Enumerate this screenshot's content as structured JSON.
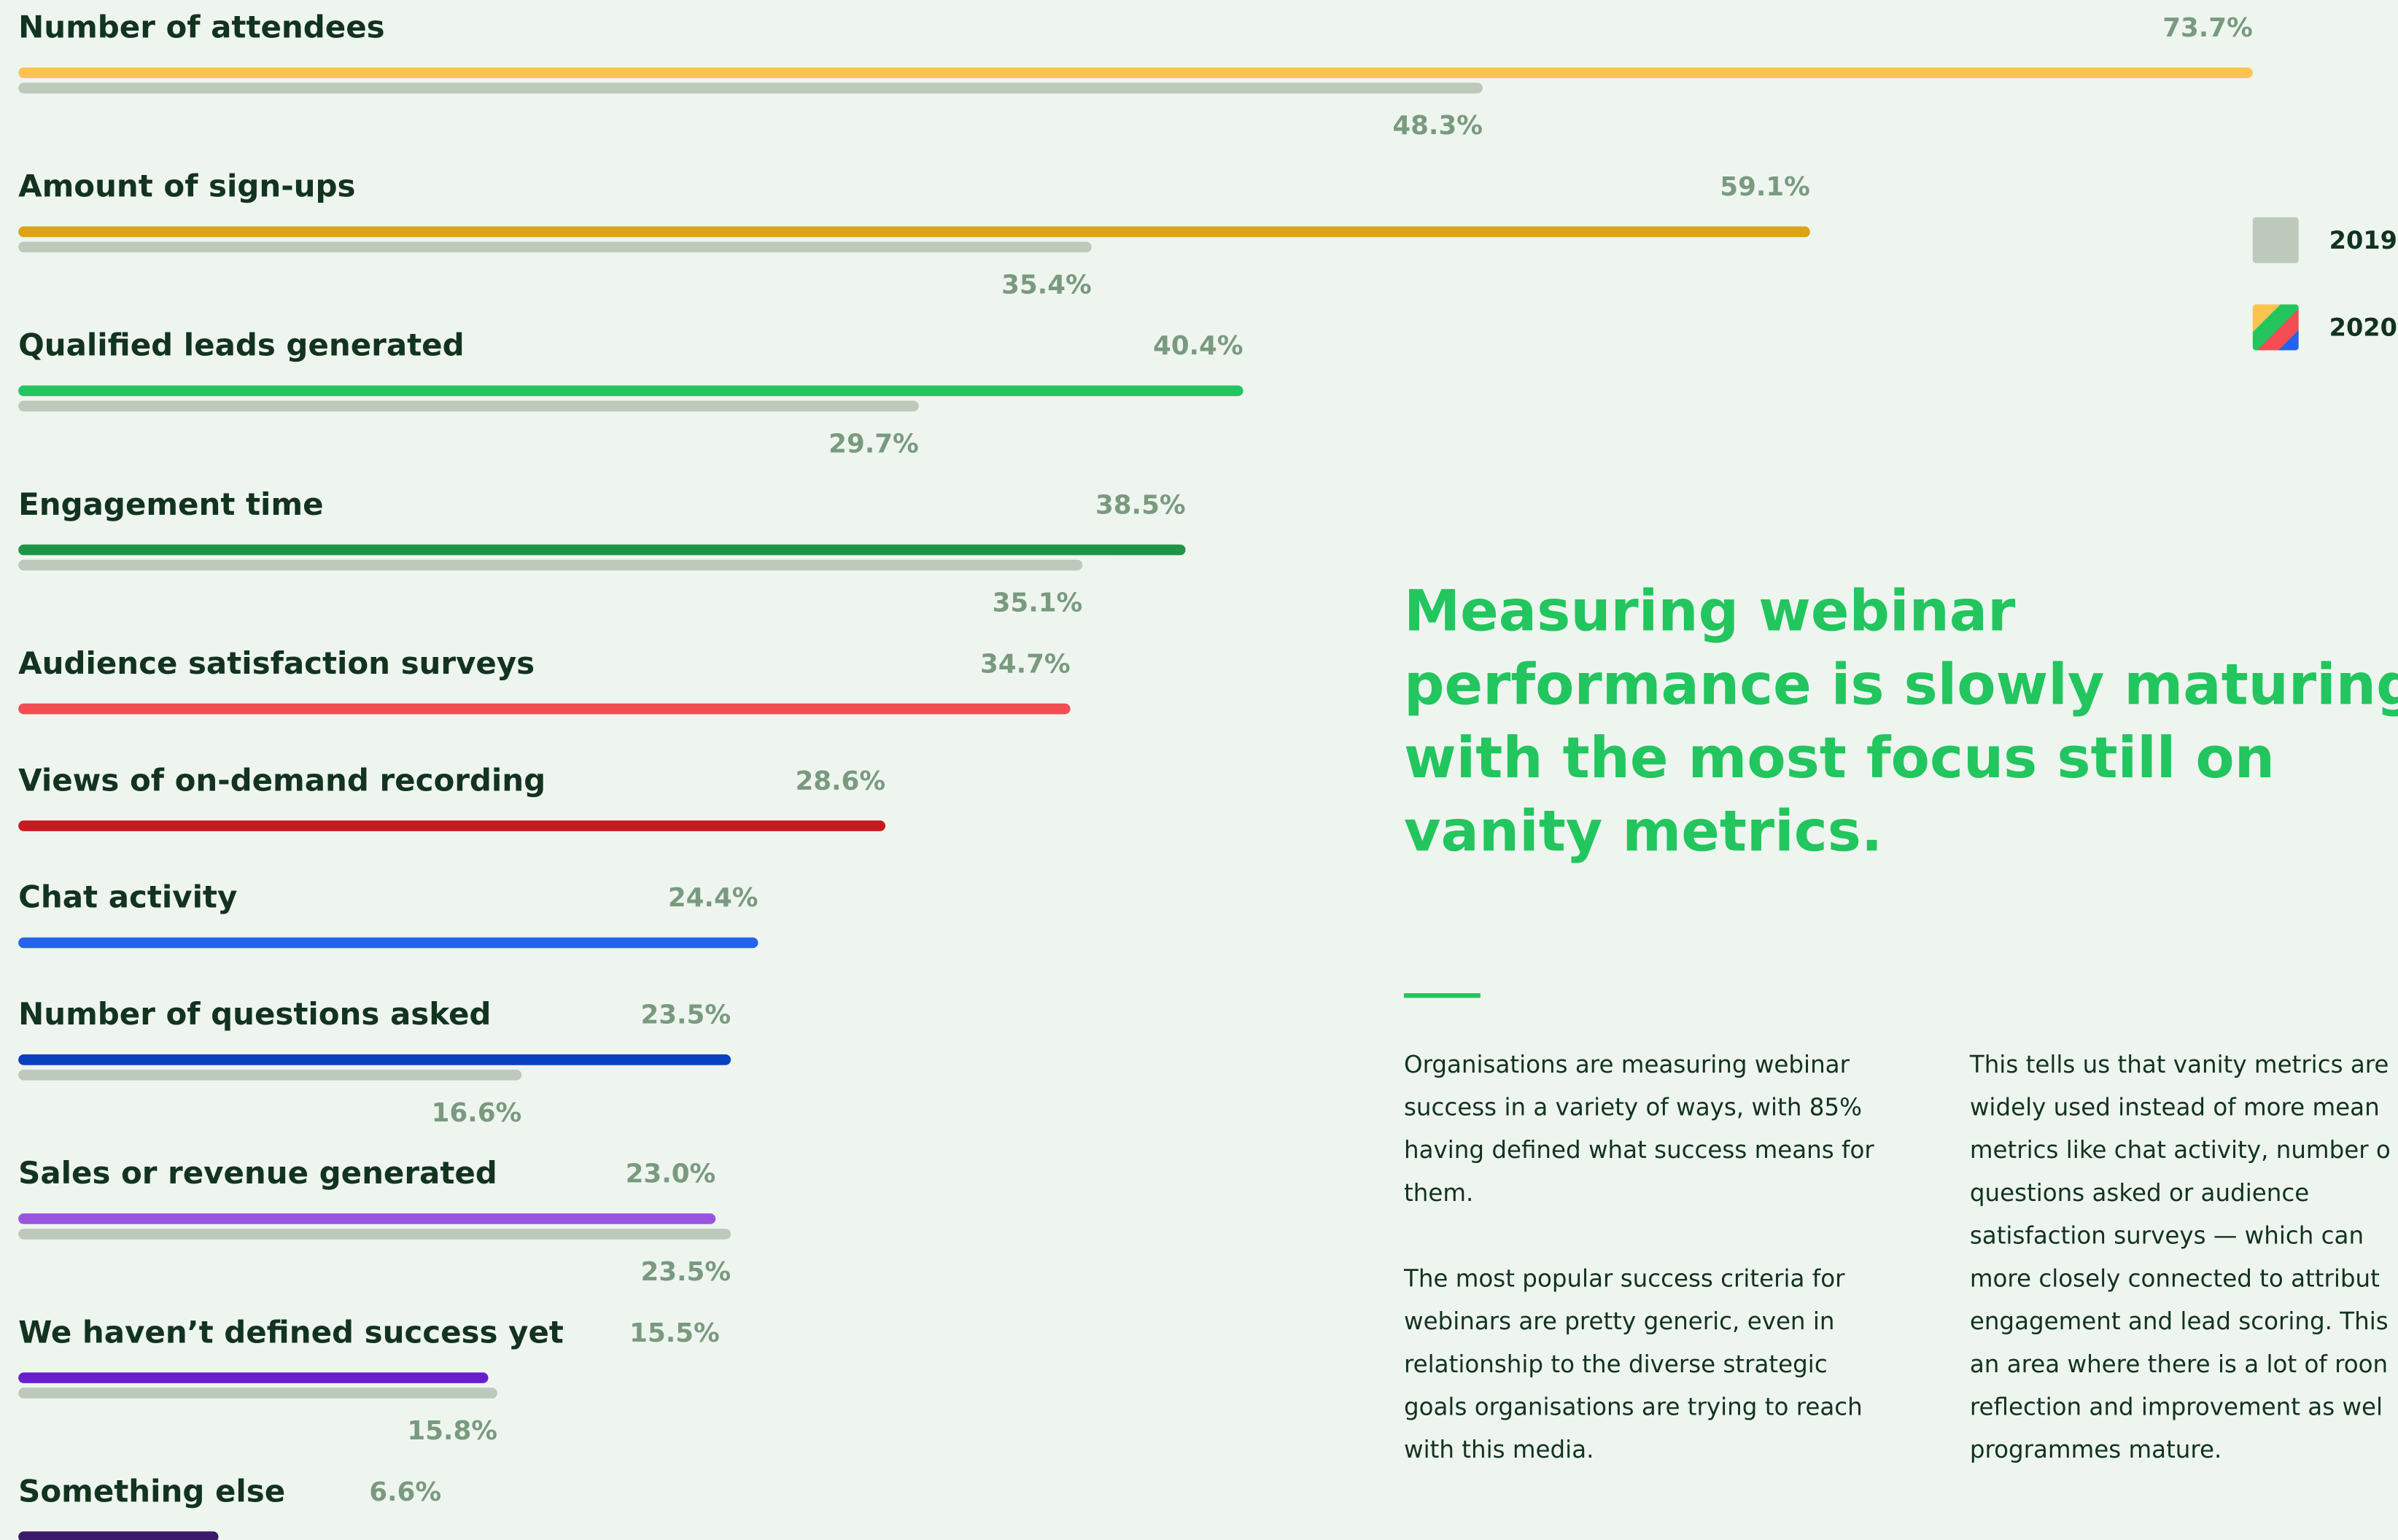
{
  "chart_data": {
    "type": "bar",
    "orientation": "horizontal",
    "categories": [
      "Number of attendees",
      "Amount of sign-ups",
      "Qualified leads generated",
      "Engagement time",
      "Audience satisfaction surveys",
      "Views of on-demand recording",
      "Chat activity",
      "Number of questions asked",
      "Sales or revenue generated",
      "We haven’t defined success yet",
      "Something else"
    ],
    "xlim": [
      0,
      100
    ],
    "series": [
      {
        "name": "2020",
        "colors": [
          "#fcc44f",
          "#dca21a",
          "#22c55e",
          "#1f9447",
          "#f44d54",
          "#c8191e",
          "#2563eb",
          "#0a3fbf",
          "#9a55e0",
          "#6a1ccf",
          "#3b1a6e"
        ],
        "values": [
          73.7,
          59.1,
          40.4,
          38.5,
          34.7,
          28.6,
          24.4,
          23.5,
          23.0,
          15.5,
          6.6
        ],
        "value_labels": [
          "73.7%",
          "59.1%",
          "40.4%",
          "38.5%",
          "34.7%",
          "28.6%",
          "24.4%",
          "23.5%",
          "23.0%",
          "15.5%",
          "6.6%"
        ]
      },
      {
        "name": "2019",
        "color": "#bcc9bb",
        "values": [
          48.3,
          35.4,
          29.7,
          35.1,
          null,
          null,
          null,
          16.6,
          23.5,
          15.8,
          null
        ],
        "value_labels": [
          "48.3%",
          "35.4%",
          "29.7%",
          "35.1%",
          null,
          null,
          null,
          "16.6%",
          "23.5%",
          "15.8%",
          null
        ]
      }
    ]
  },
  "heading": [
    "Measuring webinar",
    "performance is slowly maturing,",
    "with the most focus still on",
    "vanity metrics."
  ],
  "columns": [
    [
      [
        "Organisations are measuring webinar",
        "success in a variety of ways, with 85%",
        "having defined what success means for",
        "them."
      ],
      [
        "The most popular success criteria for",
        "webinars are pretty generic, even in",
        "relationship to the diverse strategic",
        "goals organisations are trying to reach",
        "with this media."
      ]
    ],
    [
      [
        "This tells us that vanity metrics are",
        "widely used instead of more mean",
        "metrics like chat activity, number o",
        "questions asked or audience",
        "satisfaction surveys — which can",
        "more closely connected to attribut",
        "engagement and lead scoring. This",
        "an area where there is a lot of roon",
        "reflection and improvement as wel",
        "programmes mature."
      ]
    ]
  ]
}
